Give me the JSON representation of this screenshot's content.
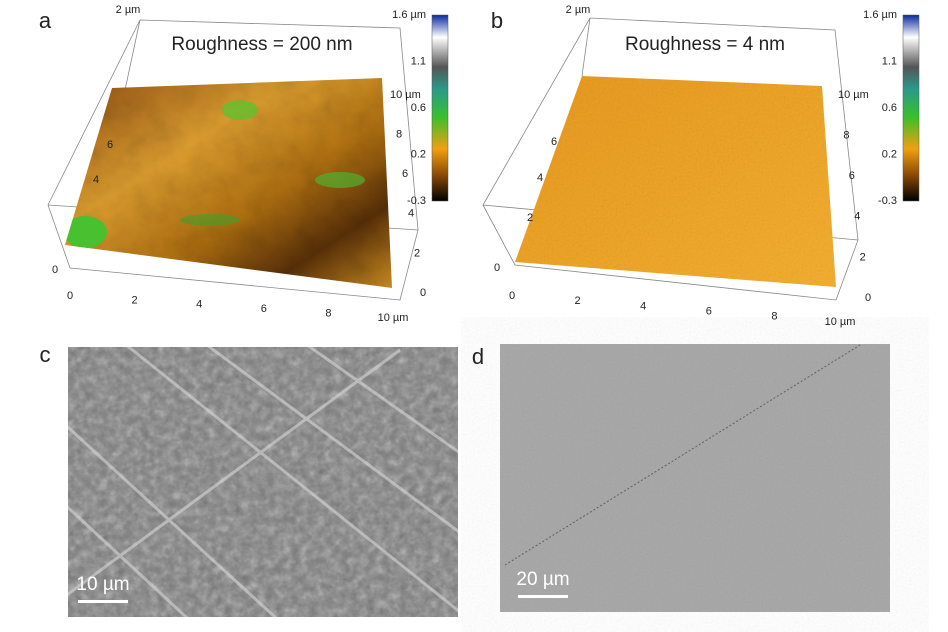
{
  "panels": [
    {
      "label": "a",
      "title": "Roughness = 200 nm",
      "colorbar": [
        "1.6 µm",
        "1.1",
        "0.6",
        "0.2",
        "-0.3"
      ],
      "x_axis": [
        "0",
        "2",
        "4",
        "6",
        "8",
        "10 µm"
      ],
      "y_axis": [
        "0",
        "2",
        "4",
        "6",
        "8",
        "10 µm"
      ],
      "z_axis": [
        "2 µm",
        "6",
        "4",
        "0"
      ]
    },
    {
      "label": "b",
      "title": "Roughness = 4 nm",
      "colorbar": [
        "1.6 µm",
        "1.1",
        "0.6",
        "0.2",
        "-0.3"
      ],
      "x_axis": [
        "0",
        "2",
        "4",
        "6",
        "8",
        "10 µm"
      ],
      "y_axis": [
        "0",
        "2",
        "4",
        "6",
        "8",
        "10 µm"
      ],
      "z_axis": [
        "2 µm",
        "6",
        "4",
        "2",
        "0"
      ]
    },
    {
      "label": "c",
      "scale_bar": "10 µm"
    },
    {
      "label": "d",
      "scale_bar": "20 µm"
    }
  ]
}
